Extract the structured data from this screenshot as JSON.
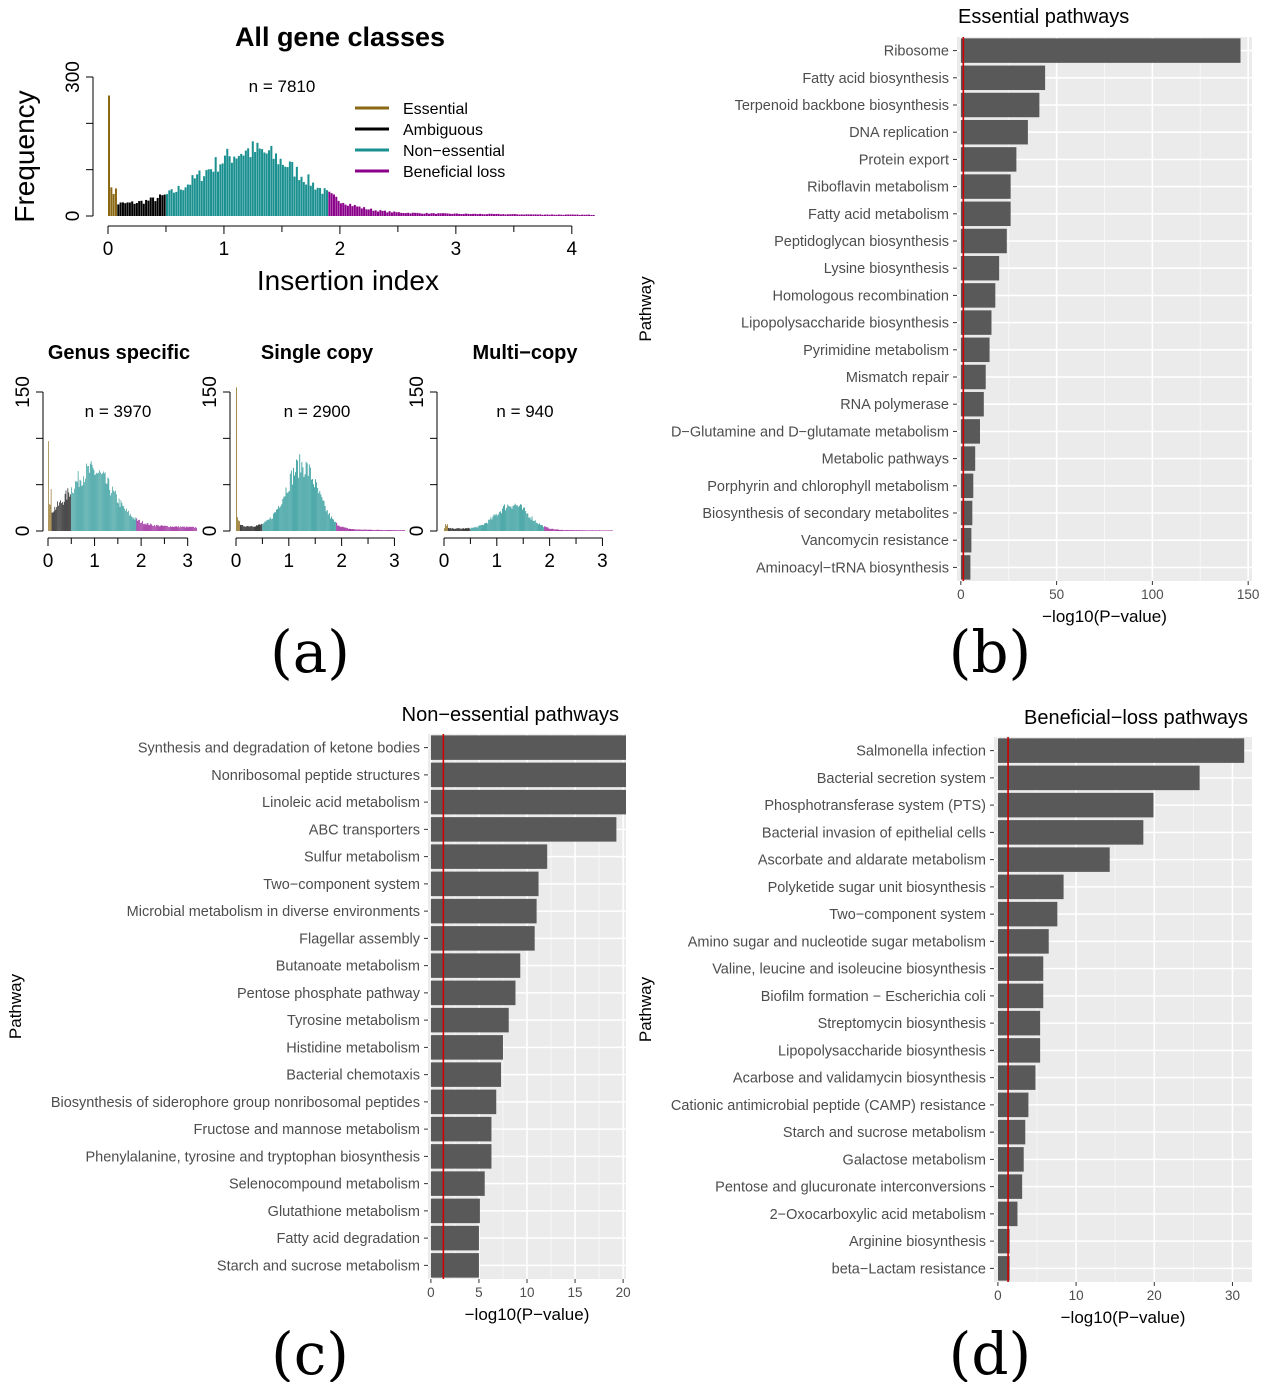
{
  "figure": {
    "panel_labels": [
      "(a)",
      "(b)",
      "(c)",
      "(d)"
    ],
    "colors": {
      "essential": "#8B6914",
      "ambiguous": "#000000",
      "non_essential": "#1A9090",
      "beneficial_loss": "#8B008B",
      "bar": "#595959",
      "panel_bg": "#EBEBEB",
      "threshold_line": "#CC0000"
    }
  },
  "chart_data": [
    {
      "id": "hist-all",
      "type": "histogram",
      "title": "All gene classes",
      "xlabel": "Insertion index",
      "ylabel": "Frequency",
      "n_label": "n = 7810",
      "xlim": [
        0,
        4.2
      ],
      "xticks": [
        "0",
        "1",
        "2",
        "3",
        "4"
      ],
      "ylim": [
        0,
        300
      ],
      "yticks": [
        "0",
        "300"
      ],
      "legend": {
        "position": "top-right",
        "entries": [
          {
            "label": "Essential",
            "color": "#8B6914"
          },
          {
            "label": "Ambiguous",
            "color": "#000000"
          },
          {
            "label": "Non−essential",
            "color": "#1A9090"
          },
          {
            "label": "Beneficial loss",
            "color": "#8B008B"
          }
        ]
      },
      "class_breaks": [
        0.03,
        0.5,
        1.9
      ],
      "density_shape": {
        "spike_at_zero": 260,
        "mode": 1.25,
        "peak": 128,
        "sd": 0.42,
        "tail": 25,
        "tail_decay": 0.55
      }
    },
    {
      "id": "hist-genus",
      "type": "histogram",
      "title": "Genus specific",
      "n_label": "n = 3970",
      "xlim": [
        0,
        3.2
      ],
      "xticks": [
        "0",
        "1",
        "2",
        "3"
      ],
      "ylim": [
        0,
        150
      ],
      "yticks": [
        "0",
        "150"
      ],
      "class_breaks": [
        0.03,
        0.5,
        1.9
      ],
      "density_shape": {
        "spike_at_zero": 97,
        "mode": 0.95,
        "peak": 55,
        "sd": 0.45,
        "tail": 14,
        "tail_decay": 0.4
      }
    },
    {
      "id": "hist-single",
      "type": "histogram",
      "title": "Single copy",
      "n_label": "n = 2900",
      "xlim": [
        0,
        3.2
      ],
      "xticks": [
        "0",
        "1",
        "2",
        "3"
      ],
      "ylim": [
        0,
        150
      ],
      "yticks": [
        "0",
        "150"
      ],
      "class_breaks": [
        0.03,
        0.5,
        1.9
      ],
      "density_shape": {
        "spike_at_zero": 155,
        "mode": 1.25,
        "peak": 68,
        "sd": 0.3,
        "tail": 6,
        "tail_decay": 0.6
      }
    },
    {
      "id": "hist-multi",
      "type": "histogram",
      "title": "Multi−copy",
      "n_label": "n = 940",
      "xlim": [
        0,
        3.2
      ],
      "xticks": [
        "0",
        "1",
        "2",
        "3"
      ],
      "ylim": [
        0,
        150
      ],
      "yticks": [
        "0",
        "150"
      ],
      "class_breaks": [
        0.03,
        0.5,
        1.9
      ],
      "density_shape": {
        "spike_at_zero": 3,
        "mode": 1.3,
        "peak": 27,
        "sd": 0.3,
        "tail": 3,
        "tail_decay": 0.5
      }
    },
    {
      "id": "bars-essential",
      "type": "bar",
      "orientation": "horizontal",
      "title": "Essential pathways",
      "xlabel": "−log10(P−value)",
      "ylabel": "Pathway",
      "xlim": [
        -2,
        152
      ],
      "xticks": [
        0,
        50,
        100,
        150
      ],
      "threshold": 1.3,
      "categories": [
        "Ribosome",
        "Fatty acid biosynthesis",
        "Terpenoid backbone biosynthesis",
        "DNA replication",
        "Protein export",
        "Riboflavin metabolism",
        "Fatty acid metabolism",
        "Peptidoglycan biosynthesis",
        "Lysine biosynthesis",
        "Homologous recombination",
        "Lipopolysaccharide biosynthesis",
        "Pyrimidine metabolism",
        "Mismatch repair",
        "RNA polymerase",
        "D−Glutamine and D−glutamate metabolism",
        "Metabolic pathways",
        "Porphyrin and chlorophyll metabolism",
        "Biosynthesis of secondary metabolites",
        "Vancomycin resistance",
        "Aminoacyl−tRNA biosynthesis"
      ],
      "values": [
        146,
        44,
        41,
        35,
        29,
        26,
        26,
        24,
        20,
        18,
        16,
        15,
        13,
        12,
        10,
        7.5,
        6.5,
        6,
        5.5,
        5
      ]
    },
    {
      "id": "bars-nonessential",
      "type": "bar",
      "orientation": "horizontal",
      "title": "Non−essential pathways",
      "xlabel": "−log10(P−value)",
      "ylabel": "Pathway",
      "xlim": [
        -0.3,
        20.3
      ],
      "xticks": [
        0,
        5,
        10,
        15,
        20
      ],
      "threshold": 1.3,
      "categories": [
        "Synthesis and degradation of ketone bodies",
        "Nonribosomal peptide structures",
        "Linoleic acid metabolism",
        "ABC transporters",
        "Sulfur metabolism",
        "Two−component system",
        "Microbial metabolism in diverse environments",
        "Flagellar assembly",
        "Butanoate metabolism",
        "Pentose phosphate pathway",
        "Tyrosine metabolism",
        "Histidine metabolism",
        "Bacterial chemotaxis",
        "Biosynthesis of siderophore group nonribosomal peptides",
        "Fructose and mannose metabolism",
        "Phenylalanine, tyrosine and tryptophan biosynthesis",
        "Selenocompound metabolism",
        "Glutathione metabolism",
        "Fatty acid degradation",
        "Starch and sucrose metabolism"
      ],
      "values": [
        20.3,
        20.3,
        20.3,
        19.3,
        12.1,
        11.2,
        11.0,
        10.8,
        9.3,
        8.8,
        8.1,
        7.5,
        7.3,
        6.8,
        6.3,
        6.3,
        5.6,
        5.1,
        5.0,
        5.0
      ]
    },
    {
      "id": "bars-beneficial",
      "type": "bar",
      "orientation": "horizontal",
      "title": "Beneficial−loss pathways",
      "xlabel": "−log10(P−value)",
      "ylabel": "Pathway",
      "xlim": [
        -0.5,
        32.5
      ],
      "xticks": [
        0,
        10,
        20,
        30
      ],
      "threshold": 1.3,
      "categories": [
        "Salmonella infection",
        "Bacterial secretion system",
        "Phosphotransferase system (PTS)",
        "Bacterial invasion of epithelial cells",
        "Ascorbate and aldarate metabolism",
        "Polyketide sugar unit biosynthesis",
        "Two−component system",
        "Amino sugar and nucleotide sugar metabolism",
        "Valine, leucine and isoleucine biosynthesis",
        "Biofilm formation − Escherichia coli",
        "Streptomycin biosynthesis",
        "Lipopolysaccharide biosynthesis",
        "Acarbose and validamycin biosynthesis",
        "Cationic antimicrobial peptide (CAMP) resistance",
        "Starch and sucrose metabolism",
        "Galactose metabolism",
        "Pentose and glucuronate interconversions",
        "2−Oxocarboxylic acid metabolism",
        "Arginine biosynthesis",
        "beta−Lactam resistance"
      ],
      "values": [
        31.5,
        25.8,
        19.9,
        18.6,
        14.3,
        8.4,
        7.6,
        6.5,
        5.8,
        5.8,
        5.4,
        5.4,
        4.8,
        3.9,
        3.5,
        3.3,
        3.1,
        2.5,
        1.5,
        1.5
      ]
    }
  ]
}
